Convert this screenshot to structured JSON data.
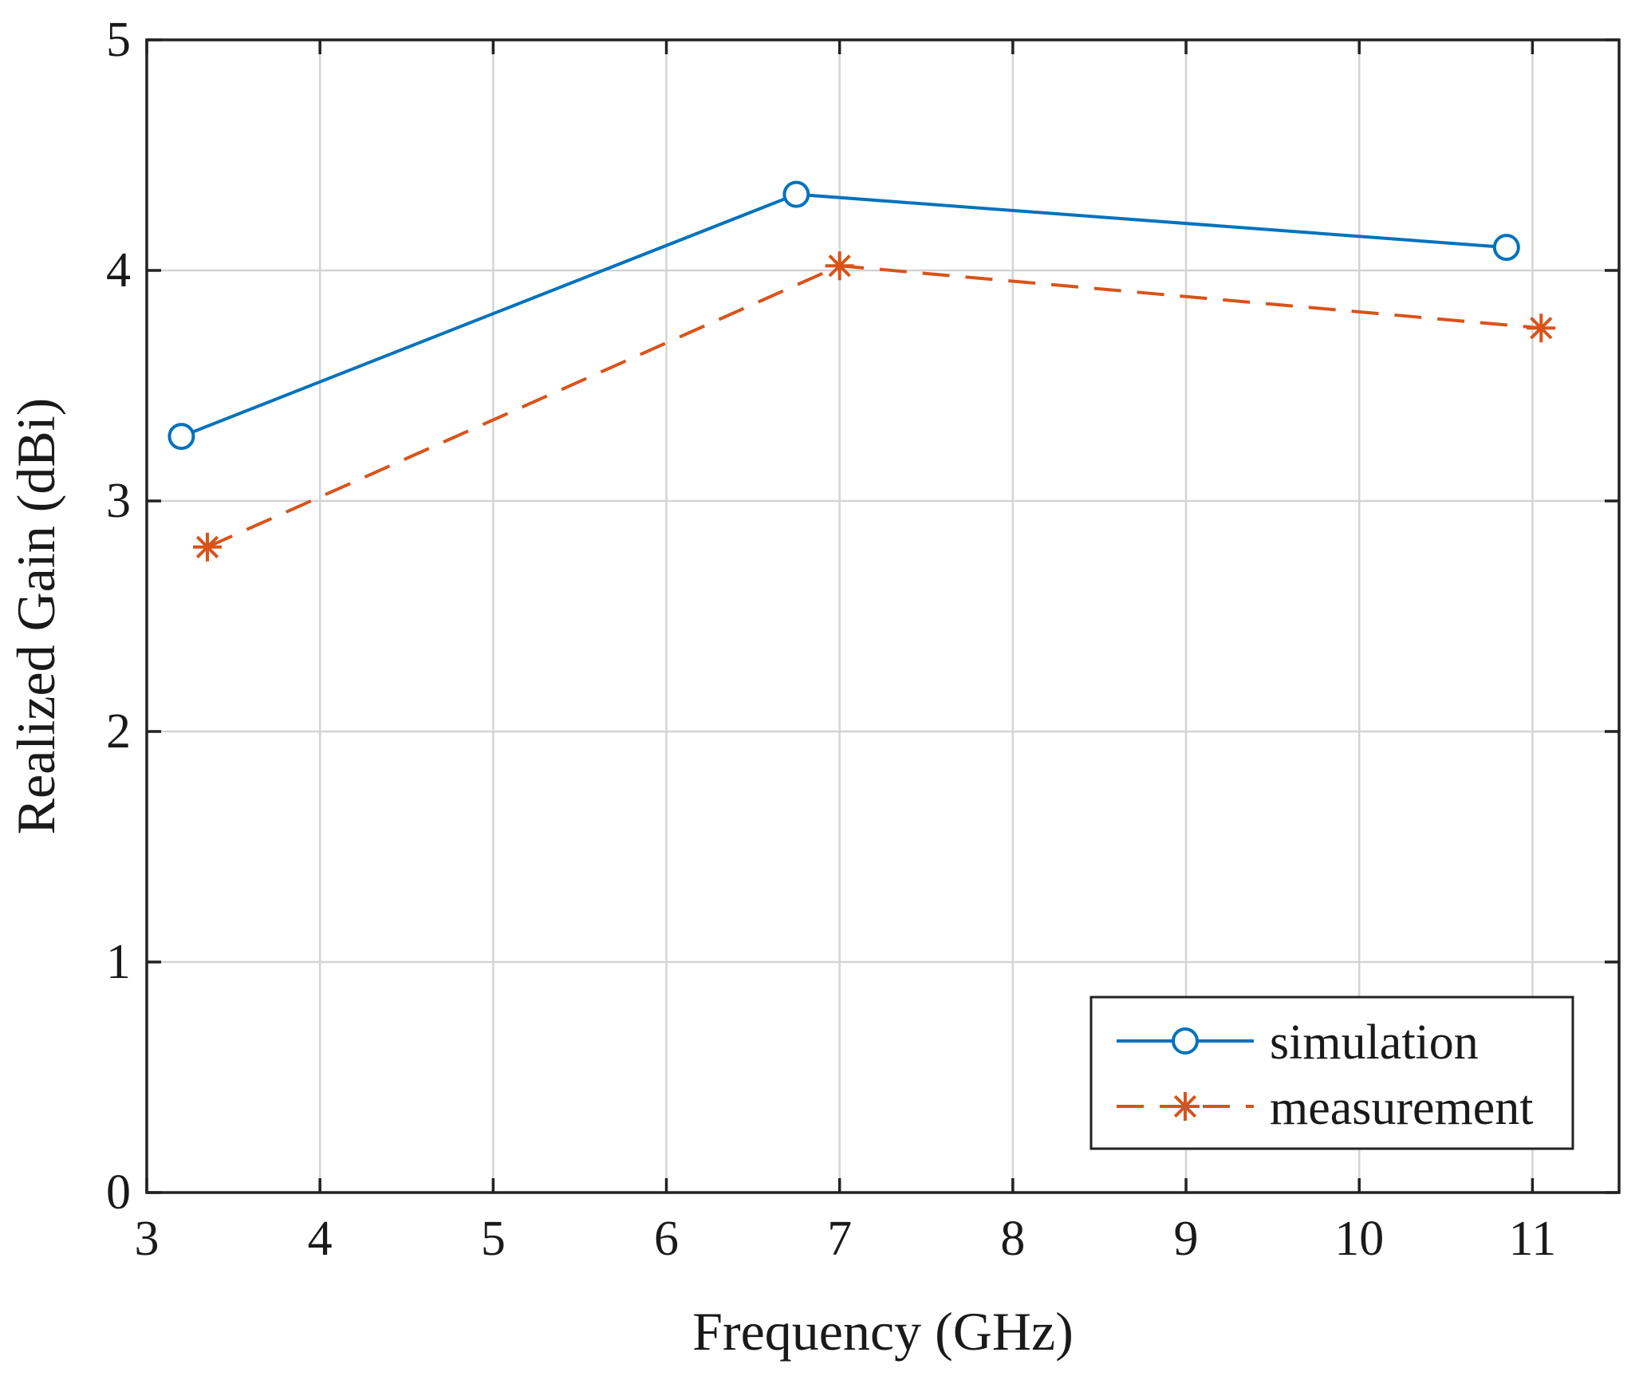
{
  "chart_data": {
    "type": "line",
    "title": "",
    "xlabel": "Frequency (GHz)",
    "ylabel": "Realized Gain (dBi)",
    "xlim": [
      3,
      11.5
    ],
    "ylim": [
      0,
      5
    ],
    "xticks": [
      "3",
      "4",
      "5",
      "6",
      "7",
      "8",
      "9",
      "10",
      "11"
    ],
    "yticks": [
      "0",
      "1",
      "2",
      "3",
      "4",
      "5"
    ],
    "grid": true,
    "legend_position": "bottom-right",
    "series": [
      {
        "name": "simulation",
        "color": "#0072BD",
        "line_style": "solid",
        "marker": "circle",
        "x": [
          3.2,
          6.75,
          10.85
        ],
        "y": [
          3.28,
          4.33,
          4.1
        ]
      },
      {
        "name": "measurement",
        "color": "#D95319",
        "line_style": "dashed",
        "marker": "asterisk",
        "x": [
          3.35,
          7.0,
          11.05
        ],
        "y": [
          2.8,
          4.02,
          3.75
        ]
      }
    ]
  }
}
